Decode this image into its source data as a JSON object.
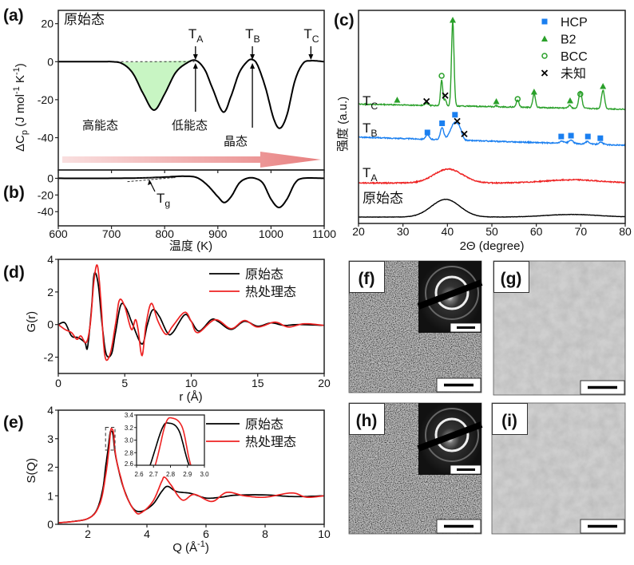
{
  "chart_data": [
    {
      "panel": "(a)",
      "type": "line",
      "ylabel_parts": [
        "ΔC",
        "p",
        " (J mol",
        "-1",
        " K",
        "-1",
        ")"
      ],
      "xlim": [
        600,
        1100
      ],
      "ylim": [
        -57,
        27
      ],
      "yticks": [
        20,
        0,
        -20,
        -40
      ],
      "sample_label": "原始态",
      "markers": [
        {
          "label": "T",
          "sub": "A",
          "x": 858
        },
        {
          "label": "T",
          "sub": "B",
          "x": 965
        },
        {
          "label": "T",
          "sub": "C",
          "x": 1075
        }
      ],
      "region_labels": [
        "高能态",
        "低能态",
        "晶态"
      ],
      "fill_color": "#c8f5c3",
      "arrow_color": "#e88080",
      "series": [
        {
          "color": "#000000",
          "points": [
            [
              600,
              0
            ],
            [
              680,
              0
            ],
            [
              700,
              0
            ],
            [
              720,
              -1
            ],
            [
              740,
              -6
            ],
            [
              760,
              -17
            ],
            [
              780,
              -25.5
            ],
            [
              800,
              -17
            ],
            [
              820,
              -6
            ],
            [
              840,
              -1
            ],
            [
              858,
              0.7
            ],
            [
              875,
              -4
            ],
            [
              890,
              -14
            ],
            [
              910,
              -26.5
            ],
            [
              925,
              -18
            ],
            [
              940,
              -6
            ],
            [
              955,
              0
            ],
            [
              965,
              1.1
            ],
            [
              975,
              -2
            ],
            [
              990,
              -14
            ],
            [
              1005,
              -30
            ],
            [
              1017,
              -35
            ],
            [
              1030,
              -28
            ],
            [
              1045,
              -10
            ],
            [
              1060,
              -1
            ],
            [
              1075,
              0.5
            ],
            [
              1100,
              0
            ]
          ]
        }
      ]
    },
    {
      "panel": "(b)",
      "type": "line",
      "xlabel": "温度 (K)",
      "xlim": [
        600,
        1100
      ],
      "ylim": [
        -57,
        10
      ],
      "xticks": [
        600,
        700,
        800,
        900,
        1000,
        1100
      ],
      "yticks": [
        0,
        -20,
        -40
      ],
      "marker": {
        "label": "T",
        "sub": "g"
      },
      "series": [
        {
          "color": "#000000",
          "points": [
            [
              600,
              0
            ],
            [
              700,
              0
            ],
            [
              760,
              0.5
            ],
            [
              800,
              1.5
            ],
            [
              835,
              2.5
            ],
            [
              860,
              1
            ],
            [
              880,
              -8
            ],
            [
              900,
              -22
            ],
            [
              912,
              -29
            ],
            [
              925,
              -22
            ],
            [
              940,
              -6
            ],
            [
              955,
              0
            ],
            [
              970,
              0
            ],
            [
              985,
              -6
            ],
            [
              1000,
              -25
            ],
            [
              1015,
              -35
            ],
            [
              1030,
              -25
            ],
            [
              1045,
              -6
            ],
            [
              1060,
              0
            ],
            [
              1100,
              0
            ]
          ]
        }
      ]
    },
    {
      "panel": "(c)",
      "type": "line",
      "xlabel": "2Θ (degree)",
      "ylabel": "强度 (a.u.)",
      "xlim": [
        20,
        80
      ],
      "ylim": [
        0,
        100
      ],
      "xticks": [
        20,
        30,
        40,
        50,
        60,
        70,
        80
      ],
      "legend": [
        {
          "label": "HCP",
          "symbol": "square",
          "color": "#1a7ff0"
        },
        {
          "label": "B2",
          "symbol": "triangle",
          "color": "#2aa02a"
        },
        {
          "label": "BCC",
          "symbol": "circle",
          "color": "#2aa02a"
        },
        {
          "label": "未知",
          "symbol": "cross",
          "color": "#000000"
        }
      ],
      "series": [
        {
          "name": "原始态",
          "color": "#000000",
          "baseline": [
            3,
            3
          ],
          "peaks": [
            [
              39.6,
              8.3,
              3.2
            ],
            [
              68,
              1.2,
              6
            ]
          ]
        },
        {
          "name": "T",
          "sub": "A",
          "color": "#ee2222",
          "baseline": [
            19,
            19
          ],
          "peaks": [
            [
              40.2,
              6.5,
              3.2
            ],
            [
              68,
              1.5,
              6
            ]
          ]
        },
        {
          "name": "T",
          "sub": "B",
          "color": "#1a7ff0",
          "baseline": [
            40.5,
            36.7
          ],
          "peaks": [
            [
              35.5,
              2,
              0.4
            ],
            [
              38.8,
              5.5,
              0.4
            ],
            [
              41.6,
              8,
              0.9
            ],
            [
              42.8,
              3,
              0.5
            ],
            [
              65.8,
              1,
              0.5
            ],
            [
              67.8,
              1.6,
              0.5
            ],
            [
              71.5,
              1.2,
              0.5
            ],
            [
              74.5,
              1,
              0.5
            ]
          ]
        },
        {
          "name": "T",
          "sub": "C",
          "color": "#2aa02a",
          "baseline": [
            56,
            53.6
          ],
          "peaks": [
            [
              35.3,
              1,
              0.4
            ],
            [
              38.7,
              12,
              0.25
            ],
            [
              39.5,
              3,
              0.25
            ],
            [
              41.2,
              40,
              0.28
            ],
            [
              51,
              0.5,
              0.3
            ],
            [
              55.8,
              3.5,
              0.3
            ],
            [
              59.5,
              6.5,
              0.3
            ],
            [
              67.5,
              1.5,
              0.3
            ],
            [
              69.9,
              8,
              0.35
            ],
            [
              75,
              8.8,
              0.35
            ]
          ]
        }
      ],
      "phase_marks": {
        "HCP": [
          [
            35.5,
            42.7
          ],
          [
            38.8,
            47
          ],
          [
            41.7,
            51
          ],
          [
            65.6,
            40.8
          ],
          [
            67.8,
            41.2
          ],
          [
            71.6,
            40.8
          ],
          [
            74.4,
            40
          ]
        ],
        "B2": [
          [
            28.7,
            58
          ],
          [
            41.2,
            95.5
          ],
          [
            51,
            57.3
          ],
          [
            59.5,
            61.8
          ],
          [
            67.6,
            57.7
          ],
          [
            75,
            64.4
          ]
        ],
        "BCC": [
          [
            38.7,
            69.3
          ],
          [
            55.8,
            58.4
          ],
          [
            69.9,
            60.7
          ]
        ],
        "未知": [
          [
            35.3,
            57.3
          ],
          [
            39.5,
            60
          ],
          [
            42.2,
            48
          ],
          [
            43.8,
            42
          ]
        ]
      }
    },
    {
      "panel": "(d)",
      "type": "line",
      "xlabel": "r (Å)",
      "ylabel": "G(r)",
      "xlim": [
        0,
        20
      ],
      "ylim": [
        -3,
        4
      ],
      "xticks": [
        0,
        5,
        10,
        15,
        20
      ],
      "yticks": [
        4,
        2,
        0,
        -2
      ],
      "series": [
        {
          "name": "原始态",
          "color": "#000000",
          "points": [
            [
              0,
              0
            ],
            [
              0.5,
              0.1
            ],
            [
              1,
              -0.7
            ],
            [
              1.5,
              -0.8
            ],
            [
              2,
              -1.1
            ],
            [
              2.2,
              -1.4
            ],
            [
              2.5,
              1
            ],
            [
              2.7,
              3.1
            ],
            [
              3,
              2.5
            ],
            [
              3.3,
              0
            ],
            [
              3.6,
              -1.8
            ],
            [
              4,
              -1.8
            ],
            [
              4.3,
              -0.5
            ],
            [
              4.7,
              1.2
            ],
            [
              5.1,
              1
            ],
            [
              5.6,
              0
            ],
            [
              6.3,
              -1.2
            ],
            [
              6.7,
              0
            ],
            [
              7.1,
              0.9
            ],
            [
              7.6,
              0.5
            ],
            [
              8.2,
              -0.5
            ],
            [
              8.6,
              -0.5
            ],
            [
              9.5,
              0.6
            ],
            [
              10,
              0.2
            ],
            [
              10.6,
              -0.4
            ],
            [
              11.5,
              0.3
            ],
            [
              12,
              0.2
            ],
            [
              13,
              -0.3
            ],
            [
              14,
              0.2
            ],
            [
              15,
              -0.1
            ],
            [
              16,
              0.1
            ],
            [
              17,
              -0.05
            ],
            [
              18,
              0
            ],
            [
              20,
              -0.05
            ]
          ]
        },
        {
          "name": "热处理态",
          "color": "#ee2222",
          "points": [
            [
              0,
              0
            ],
            [
              0.5,
              -0.3
            ],
            [
              1,
              -0.5
            ],
            [
              1.4,
              -0.9
            ],
            [
              1.7,
              -0.7
            ],
            [
              2.1,
              -1.1
            ],
            [
              2.4,
              0
            ],
            [
              2.7,
              2.8
            ],
            [
              2.95,
              3.6
            ],
            [
              3.2,
              1.5
            ],
            [
              3.5,
              -1.9
            ],
            [
              3.9,
              -1.8
            ],
            [
              4.3,
              0
            ],
            [
              4.6,
              1.5
            ],
            [
              5,
              1.1
            ],
            [
              5.5,
              -0.3
            ],
            [
              5.8,
              0.3
            ],
            [
              6.0,
              -0.3
            ],
            [
              6.3,
              -1.9
            ],
            [
              6.6,
              0
            ],
            [
              7.0,
              1.3
            ],
            [
              7.5,
              0.2
            ],
            [
              8.1,
              -0.6
            ],
            [
              8.6,
              -0.1
            ],
            [
              9.5,
              0.75
            ],
            [
              10,
              0.2
            ],
            [
              10.5,
              -0.5
            ],
            [
              11.8,
              0.3
            ],
            [
              13,
              -0.25
            ],
            [
              14,
              0.25
            ],
            [
              15,
              -0.15
            ],
            [
              16.3,
              0.15
            ],
            [
              17.3,
              -0.15
            ],
            [
              18.5,
              0.05
            ],
            [
              20,
              -0.05
            ]
          ]
        }
      ]
    },
    {
      "panel": "(e)",
      "type": "line",
      "xlabel_parts": [
        "Q (Å",
        "-1",
        ")"
      ],
      "ylabel": "S(Q)",
      "xlim": [
        1,
        10
      ],
      "ylim": [
        0,
        4
      ],
      "xticks": [
        2,
        4,
        6,
        8,
        10
      ],
      "yticks": [
        0,
        1,
        2,
        3,
        4
      ],
      "inset": {
        "xlim": [
          2.6,
          3.0
        ],
        "ylim": [
          2.6,
          3.4
        ],
        "xticks": [
          "2.6",
          "2.7",
          "2.8",
          "2.9",
          "3.0"
        ],
        "yticks": [
          "2.6",
          "2.8",
          "3.0",
          "3.2",
          "3.4"
        ]
      },
      "series": [
        {
          "name": "原始态",
          "color": "#000000",
          "points": [
            [
              1,
              0.05
            ],
            [
              1.5,
              0.1
            ],
            [
              2,
              0.2
            ],
            [
              2.3,
              0.5
            ],
            [
              2.5,
              1.2
            ],
            [
              2.6,
              2.0
            ],
            [
              2.68,
              2.6
            ],
            [
              2.75,
              3.18
            ],
            [
              2.79,
              3.27
            ],
            [
              2.85,
              3.15
            ],
            [
              2.91,
              2.6
            ],
            [
              3.0,
              2.1
            ],
            [
              3.2,
              1.3
            ],
            [
              3.5,
              0.6
            ],
            [
              3.8,
              0.45
            ],
            [
              4.2,
              0.7
            ],
            [
              4.5,
              1.15
            ],
            [
              4.7,
              1.33
            ],
            [
              5,
              1.15
            ],
            [
              5.5,
              1.08
            ],
            [
              6,
              0.92
            ],
            [
              6.5,
              0.95
            ],
            [
              7,
              1.02
            ],
            [
              8,
              1.03
            ],
            [
              9,
              0.97
            ],
            [
              10,
              1.0
            ]
          ]
        },
        {
          "name": "热处理态",
          "color": "#ee2222",
          "points": [
            [
              1,
              0.05
            ],
            [
              2,
              0.2
            ],
            [
              2.4,
              0.7
            ],
            [
              2.6,
              1.7
            ],
            [
              2.71,
              2.6
            ],
            [
              2.77,
              3.25
            ],
            [
              2.81,
              3.35
            ],
            [
              2.87,
              3.2
            ],
            [
              2.92,
              2.6
            ],
            [
              3.0,
              2.1
            ],
            [
              3.1,
              1.7
            ],
            [
              3.3,
              1.0
            ],
            [
              3.6,
              0.45
            ],
            [
              3.8,
              0.4
            ],
            [
              4.2,
              0.8
            ],
            [
              4.5,
              1.5
            ],
            [
              4.6,
              1.65
            ],
            [
              4.8,
              1.4
            ],
            [
              5.2,
              0.85
            ],
            [
              5.6,
              1.05
            ],
            [
              6.2,
              0.8
            ],
            [
              6.7,
              1.12
            ],
            [
              7.3,
              1.0
            ],
            [
              8,
              0.95
            ],
            [
              8.9,
              1.1
            ],
            [
              9.4,
              0.95
            ],
            [
              10,
              1.0
            ]
          ]
        }
      ]
    }
  ],
  "images": [
    {
      "label": "(f)",
      "kind": "hrtem",
      "has_diffraction_inset": true
    },
    {
      "label": "(g)",
      "kind": "bright-field"
    },
    {
      "label": "(h)",
      "kind": "hrtem",
      "has_diffraction_inset": true
    },
    {
      "label": "(i)",
      "kind": "bright-field"
    }
  ]
}
